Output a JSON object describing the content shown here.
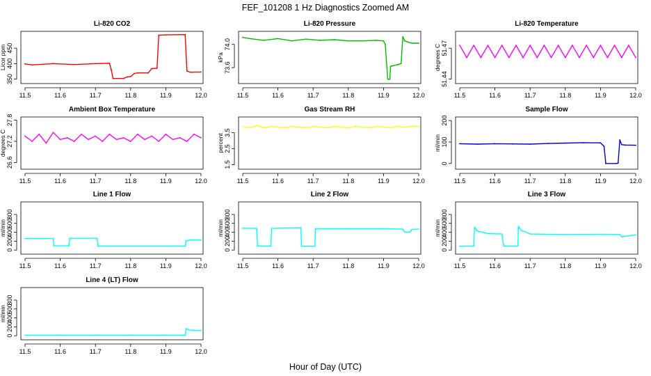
{
  "figure": {
    "title": "FEF_101208  1 Hz Diagnostics Zoomed AM",
    "xlabel": "Hour of Day (UTC)"
  },
  "chart_data": [
    {
      "type": "line",
      "title": "Li-820 CO2",
      "ylabel": "Licor ppm",
      "color": "#ff0000",
      "xlim": [
        11.5,
        12.0
      ],
      "ylim": [
        340,
        500
      ],
      "xticks": [
        "11.5",
        "11.6",
        "11.7",
        "11.8",
        "11.9",
        "12.0"
      ],
      "yticks": [
        {
          "v": 350,
          "label": "350"
        },
        {
          "v": 400,
          "label": "400"
        },
        {
          "v": 450,
          "label": "450"
        }
      ],
      "x": [
        11.5,
        11.52,
        11.58,
        11.64,
        11.7,
        11.74,
        11.745,
        11.75,
        11.78,
        11.79,
        11.8,
        11.81,
        11.82,
        11.85,
        11.86,
        11.875,
        11.88,
        11.9,
        11.955,
        11.96,
        11.97,
        12.0
      ],
      "y": [
        399,
        396,
        400,
        397,
        400,
        401,
        380,
        352,
        352,
        357,
        358,
        368,
        370,
        370,
        384,
        385,
        492,
        493,
        494,
        376,
        372,
        373
      ]
    },
    {
      "type": "line",
      "title": "Li-820 Pressure",
      "ylabel": "kPa",
      "color": "#00bb00",
      "xlim": [
        11.5,
        12.0
      ],
      "ylim": [
        73.35,
        74.2
      ],
      "xticks": [
        "11.5",
        "11.6",
        "11.7",
        "11.8",
        "11.9",
        "12.0"
      ],
      "yticks": [
        {
          "v": 73.6,
          "label": "73.6"
        },
        {
          "v": 74.0,
          "label": "74.0"
        }
      ],
      "x": [
        11.5,
        11.52,
        11.56,
        11.6,
        11.64,
        11.68,
        11.72,
        11.76,
        11.8,
        11.84,
        11.88,
        11.9,
        11.905,
        11.912,
        11.918,
        11.92,
        11.925,
        11.94,
        11.95,
        11.955,
        11.96,
        11.97,
        11.98,
        12.0
      ],
      "y": [
        74.12,
        74.1,
        74.07,
        74.1,
        74.06,
        74.09,
        74.07,
        74.08,
        74.06,
        74.06,
        74.07,
        74.06,
        74.0,
        73.4,
        73.4,
        73.62,
        73.63,
        73.65,
        73.67,
        74.13,
        74.06,
        74.04,
        74.02,
        74.02
      ]
    },
    {
      "type": "line",
      "title": "Li-820 Temperature",
      "ylabel": "degrees C",
      "color": "#ff00ff",
      "xlim": [
        11.5,
        12.0
      ],
      "ylim": [
        51.437,
        51.485
      ],
      "xticks": [
        "11.5",
        "11.6",
        "11.7",
        "11.8",
        "11.9",
        "12.0"
      ],
      "yticks": [
        {
          "v": 51.44,
          "label": "51.44"
        },
        {
          "v": 51.47,
          "label": "51.47"
        }
      ],
      "x": [
        11.5,
        11.52,
        11.54,
        11.56,
        11.58,
        11.6,
        11.62,
        11.64,
        11.66,
        11.68,
        11.7,
        11.72,
        11.74,
        11.76,
        11.78,
        11.8,
        11.82,
        11.84,
        11.86,
        11.88,
        11.9,
        11.92,
        11.94,
        11.96,
        11.98,
        12.0
      ],
      "y": [
        51.4727,
        51.4609,
        51.4727,
        51.4609,
        51.4727,
        51.4609,
        51.4727,
        51.4609,
        51.4727,
        51.4609,
        51.4727,
        51.4609,
        51.4727,
        51.4609,
        51.4727,
        51.4609,
        51.4727,
        51.4609,
        51.4727,
        51.4609,
        51.4727,
        51.4609,
        51.4727,
        51.4609,
        51.4727,
        51.4609
      ]
    },
    {
      "type": "line",
      "title": "Ambient Box Temperature",
      "ylabel": "degrees C",
      "color": "#ff00ff",
      "xlim": [
        11.5,
        12.0
      ],
      "ylim": [
        26.45,
        27.85
      ],
      "xticks": [
        "11.5",
        "11.6",
        "11.7",
        "11.8",
        "11.9",
        "12.0"
      ],
      "yticks": [
        {
          "v": 26.6,
          "label": "26.6"
        },
        {
          "v": 27.2,
          "label": "27.2"
        },
        {
          "v": 27.8,
          "label": "27.8"
        }
      ],
      "x": [
        11.5,
        11.52,
        11.54,
        11.56,
        11.58,
        11.6,
        11.62,
        11.64,
        11.66,
        11.68,
        11.7,
        11.72,
        11.74,
        11.76,
        11.78,
        11.8,
        11.82,
        11.84,
        11.86,
        11.88,
        11.9,
        11.92,
        11.94,
        11.96,
        11.98,
        12.0
      ],
      "y": [
        27.35,
        27.2,
        27.4,
        27.15,
        27.45,
        27.25,
        27.3,
        27.2,
        27.4,
        27.25,
        27.35,
        27.2,
        27.4,
        27.25,
        27.3,
        27.2,
        27.4,
        27.25,
        27.35,
        27.2,
        27.4,
        27.25,
        27.3,
        27.2,
        27.4,
        27.3
      ]
    },
    {
      "type": "line",
      "title": "Gas Stream RH",
      "ylabel": "percent",
      "color": "#ffff00",
      "xlim": [
        11.5,
        12.0
      ],
      "ylim": [
        1.3,
        4.4
      ],
      "xticks": [
        "11.5",
        "11.6",
        "11.7",
        "11.8",
        "11.9",
        "12.0"
      ],
      "yticks": [
        {
          "v": 1.5,
          "label": "1.5"
        },
        {
          "v": 2.5,
          "label": "2.5"
        },
        {
          "v": 3.5,
          "label": "3.5"
        }
      ],
      "x": [
        11.5,
        11.52,
        11.54,
        11.56,
        11.58,
        11.6,
        11.62,
        11.64,
        11.66,
        11.68,
        11.7,
        11.72,
        11.74,
        11.76,
        11.78,
        11.8,
        11.82,
        11.84,
        11.86,
        11.88,
        11.9,
        11.92,
        11.94,
        11.96,
        11.98,
        12.0
      ],
      "y": [
        3.9,
        3.8,
        3.95,
        3.8,
        3.9,
        3.85,
        3.8,
        3.9,
        3.85,
        3.8,
        3.9,
        3.85,
        3.8,
        3.9,
        3.85,
        3.8,
        3.9,
        3.85,
        3.8,
        3.9,
        3.85,
        3.8,
        3.9,
        3.85,
        3.9,
        3.9
      ]
    },
    {
      "type": "line",
      "title": "Sample Flow",
      "ylabel": "ml/min",
      "color": "#0000cc",
      "xlim": [
        11.5,
        12.0
      ],
      "ylim": [
        -20,
        210
      ],
      "xticks": [
        "11.5",
        "11.6",
        "11.7",
        "11.8",
        "11.9",
        "12.0"
      ],
      "yticks": [
        {
          "v": 0,
          "label": "0"
        },
        {
          "v": 100,
          "label": "100"
        },
        {
          "v": 200,
          "label": "200"
        }
      ],
      "x": [
        11.5,
        11.55,
        11.6,
        11.65,
        11.7,
        11.75,
        11.8,
        11.85,
        11.9,
        11.91,
        11.915,
        11.945,
        11.95,
        11.955,
        11.96,
        11.97,
        12.0
      ],
      "y": [
        92,
        90,
        92,
        91,
        90,
        93,
        95,
        97,
        96,
        80,
        0,
        0,
        2,
        110,
        88,
        86,
        85
      ]
    },
    {
      "type": "line",
      "title": "Line 1 Flow",
      "ylabel": "ml/min",
      "color": "#00ffff",
      "xlim": [
        11.5,
        12.0
      ],
      "ylim": [
        -60,
        1050
      ],
      "xticks": [
        "11.5",
        "11.6",
        "11.7",
        "11.8",
        "11.9",
        "12.0"
      ],
      "yticks": [
        {
          "v": 0,
          "label": "0"
        },
        {
          "v": 200,
          "label": "200"
        },
        {
          "v": 400,
          "label": "400"
        },
        {
          "v": 600,
          "label": "600"
        },
        {
          "v": 800,
          "label": "800"
        }
      ],
      "x": [
        11.5,
        11.58,
        11.582,
        11.625,
        11.627,
        11.705,
        11.707,
        11.955,
        11.958,
        11.97,
        12.0
      ],
      "y": [
        260,
        262,
        95,
        95,
        265,
        265,
        90,
        90,
        205,
        230,
        225
      ]
    },
    {
      "type": "line",
      "title": "Line 2 Flow",
      "ylabel": "ml/min",
      "color": "#00ffff",
      "xlim": [
        11.5,
        12.0
      ],
      "ylim": [
        -60,
        1050
      ],
      "xticks": [
        "11.5",
        "11.6",
        "11.7",
        "11.8",
        "11.9",
        "12.0"
      ],
      "yticks": [
        {
          "v": 0,
          "label": "0"
        },
        {
          "v": 200,
          "label": "200"
        },
        {
          "v": 400,
          "label": "400"
        },
        {
          "v": 600,
          "label": "600"
        },
        {
          "v": 800,
          "label": "800"
        }
      ],
      "x": [
        11.5,
        11.54,
        11.542,
        11.58,
        11.582,
        11.665,
        11.667,
        11.705,
        11.707,
        11.8,
        11.9,
        11.955,
        11.96,
        11.975,
        11.98,
        12.0
      ],
      "y": [
        490,
        485,
        90,
        90,
        485,
        500,
        85,
        85,
        480,
        480,
        480,
        470,
        400,
        400,
        460,
        470
      ]
    },
    {
      "type": "line",
      "title": "Line 3 Flow",
      "ylabel": "ml/min",
      "color": "#00ffff",
      "xlim": [
        11.5,
        12.0
      ],
      "ylim": [
        -60,
        1050
      ],
      "xticks": [
        "11.5",
        "11.6",
        "11.7",
        "11.8",
        "11.9",
        "12.0"
      ],
      "yticks": [
        {
          "v": 0,
          "label": "0"
        },
        {
          "v": 200,
          "label": "200"
        },
        {
          "v": 400,
          "label": "400"
        },
        {
          "v": 600,
          "label": "600"
        },
        {
          "v": 800,
          "label": "800"
        }
      ],
      "x": [
        11.5,
        11.54,
        11.542,
        11.55,
        11.57,
        11.58,
        11.62,
        11.625,
        11.665,
        11.667,
        11.675,
        11.69,
        11.7,
        11.8,
        11.9,
        11.955,
        11.96,
        11.99,
        12.0
      ],
      "y": [
        85,
        90,
        510,
        430,
        390,
        370,
        360,
        90,
        90,
        530,
        440,
        400,
        360,
        350,
        355,
        350,
        300,
        330,
        340
      ]
    },
    {
      "type": "line",
      "title": "Line 4 (LT) Flow",
      "ylabel": "ml/min",
      "color": "#00ffff",
      "xlim": [
        11.5,
        12.0
      ],
      "ylim": [
        -60,
        1050
      ],
      "xticks": [
        "11.5",
        "11.6",
        "11.7",
        "11.8",
        "11.9",
        "12.0"
      ],
      "yticks": [
        {
          "v": 0,
          "label": "0"
        },
        {
          "v": 200,
          "label": "200"
        },
        {
          "v": 400,
          "label": "400"
        },
        {
          "v": 600,
          "label": "600"
        },
        {
          "v": 800,
          "label": "800"
        }
      ],
      "x": [
        11.5,
        11.6,
        11.7,
        11.8,
        11.9,
        11.955,
        11.958,
        11.965,
        11.98,
        12.0
      ],
      "y": [
        10,
        10,
        10,
        10,
        10,
        10,
        160,
        130,
        120,
        120
      ]
    }
  ]
}
